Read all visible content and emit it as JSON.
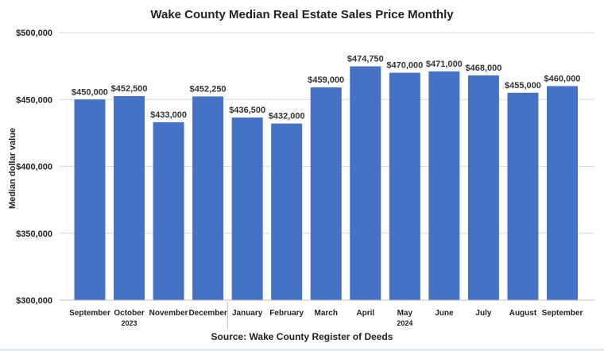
{
  "chart_data": {
    "type": "bar",
    "title": "Wake County Median Real Estate Sales Price Monthly",
    "ylabel": "Median dollar value",
    "source": "Source: Wake County Register of Deeds",
    "categories": [
      "September",
      "October",
      "November",
      "December",
      "January",
      "February",
      "March",
      "April",
      "May",
      "June",
      "July",
      "August",
      "September"
    ],
    "years": [
      {
        "label": "2023",
        "under_index": 1
      },
      {
        "label": "2024",
        "under_index": 8
      }
    ],
    "values": [
      450000,
      452500,
      433000,
      452250,
      436500,
      432000,
      459000,
      474750,
      470000,
      471000,
      468000,
      455000,
      460000
    ],
    "data_labels": [
      "$450,000",
      "$452,500",
      "$433,000",
      "$452,250",
      "$436,500",
      "$432,000",
      "$459,000",
      "$474,750",
      "$470,000",
      "$471,000",
      "$468,000",
      "$455,000",
      "$460,000"
    ],
    "ylim": [
      300000,
      500000
    ],
    "yticks": [
      300000,
      350000,
      400000,
      450000,
      500000
    ],
    "ytick_labels": [
      "$300,000",
      "$350,000",
      "$400,000",
      "$450,000",
      "$500,000"
    ],
    "grid": true,
    "bar_color": "#4472c4"
  }
}
